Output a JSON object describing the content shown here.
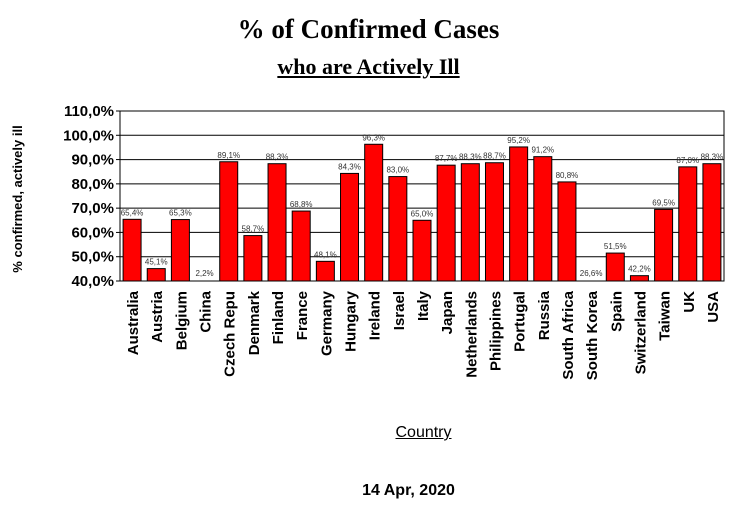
{
  "title": "% of Confirmed Cases",
  "subtitle": "who are Actively Ill",
  "footer_date": "14 Apr, 2020",
  "colors": {
    "bar": "#ff0000",
    "bar_stroke": "#000000",
    "grid": "#000000"
  },
  "chart_data": {
    "type": "bar",
    "xlabel": "Country",
    "ylabel": "% confirmed, actively ill",
    "ylim": [
      40,
      110
    ],
    "ytick_labels": [
      "40,0%",
      "50,0%",
      "60,0%",
      "70,0%",
      "80,0%",
      "90,0%",
      "100,0%",
      "110,0%"
    ],
    "grid": true,
    "categories": [
      "Australia",
      "Austria",
      "Belgium",
      "China",
      "Czech Repu",
      "Denmark",
      "Finland",
      "France",
      "Germany",
      "Hungary",
      "Ireland",
      "Israel",
      "Italy",
      "Japan",
      "Netherlands",
      "Philippines",
      "Portugal",
      "Russia",
      "South Africa",
      "South Korea",
      "Spain",
      "Switzerland",
      "Taiwan",
      "UK",
      "USA"
    ],
    "values": [
      65.4,
      45.1,
      65.3,
      2.2,
      89.1,
      58.7,
      88.3,
      68.8,
      48.1,
      84.3,
      96.3,
      83.0,
      65.0,
      87.7,
      88.3,
      88.7,
      95.2,
      91.2,
      80.8,
      26.6,
      51.5,
      42.2,
      69.5,
      87.0,
      88.3
    ],
    "value_labels": [
      "65,4%",
      "45,1%",
      "65,3%",
      "2,2%",
      "89,1%",
      "58,7%",
      "88,3%",
      "68,8%",
      "48,1%",
      "84,3%",
      "96,3%",
      "83,0%",
      "65,0%",
      "87,7%",
      "88,3%",
      "88,7%",
      "95,2%",
      "91,2%",
      "80,8%",
      "26,6%",
      "51,5%",
      "42,2%",
      "69,5%",
      "87,0%",
      "88,3%"
    ]
  }
}
